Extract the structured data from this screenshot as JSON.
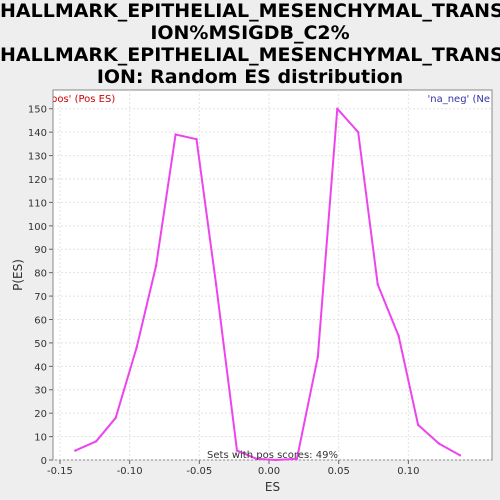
{
  "chart_data": {
    "type": "line",
    "title_lines": [
      "HALLMARK_EPITHELIAL_MESENCHYMAL_TRANSIT",
      "ION%MSIGDB_C2%",
      "HALLMARK_EPITHELIAL_MESENCHYMAL_TRANSIT",
      "ION: Random ES distribution"
    ],
    "xlabel": "ES",
    "ylabel": "P(ES)",
    "xlim": [
      -0.155,
      0.16
    ],
    "ylim": [
      0,
      158
    ],
    "x_ticks": [
      -0.15,
      -0.1,
      -0.05,
      0.0,
      0.05,
      0.1
    ],
    "x_tick_labels": [
      "-0.15",
      "-0.10",
      "-0.05",
      "0.00",
      "0.05",
      "0.10"
    ],
    "y_ticks": [
      0,
      10,
      20,
      30,
      40,
      50,
      60,
      70,
      80,
      90,
      100,
      110,
      120,
      130,
      140,
      150
    ],
    "y_tick_labels": [
      "0",
      "10",
      "20",
      "30",
      "40",
      "50",
      "60",
      "70",
      "80",
      "90",
      "100",
      "110",
      "120",
      "130",
      "140",
      "150"
    ],
    "grid": true,
    "legend": [
      {
        "label": "pos' (Pos ES)",
        "position": "top-left",
        "color": "#cc0000"
      },
      {
        "label": "'na_neg' (Ne",
        "position": "top-right",
        "color": "#3333aa"
      }
    ],
    "annotation": "Sets with pos scores: 49%",
    "series": [
      {
        "name": "Random ES distribution",
        "color": "#ee44ee",
        "x": [
          -0.139,
          -0.124,
          -0.11,
          -0.095,
          -0.081,
          -0.067,
          -0.052,
          -0.038,
          -0.023,
          -0.009,
          0.005,
          0.02,
          0.035,
          0.049,
          0.064,
          0.078,
          0.093,
          0.107,
          0.122,
          0.137
        ],
        "y": [
          4,
          8,
          18,
          48,
          83,
          139,
          137,
          75,
          4,
          0.5,
          0,
          0.5,
          44,
          150,
          140,
          75,
          53,
          15,
          7,
          2
        ]
      }
    ]
  }
}
